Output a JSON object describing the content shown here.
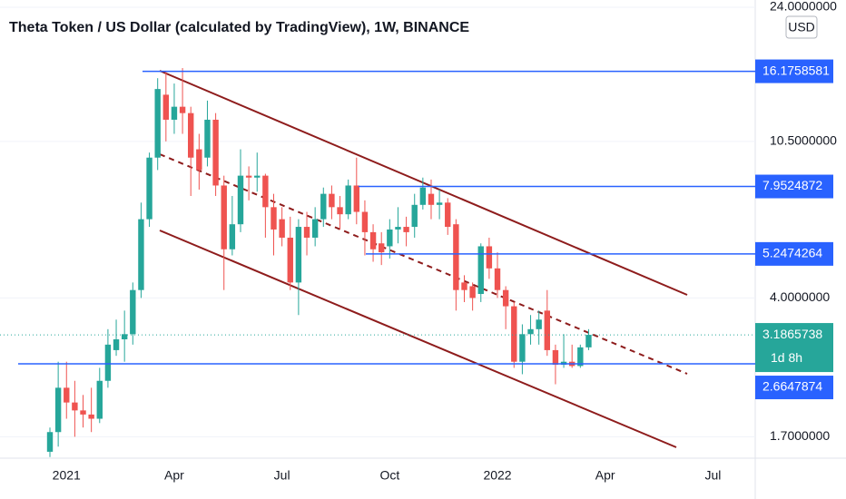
{
  "chart_data": {
    "type": "candlestick",
    "title": "Theta Token / US Dollar (calculated by TradingView), 1W, BINANCE",
    "currency": "USD",
    "categories": [
      null,
      null,
      "2021",
      null,
      null,
      null,
      null,
      null,
      null,
      null,
      null,
      null,
      null,
      null,
      null,
      "Apr",
      null,
      null,
      null,
      null,
      null,
      null,
      null,
      null,
      null,
      null,
      null,
      null,
      "Jul",
      null,
      null,
      null,
      null,
      null,
      null,
      null,
      null,
      null,
      null,
      null,
      null,
      "Oct",
      null,
      null,
      null,
      null,
      null,
      null,
      null,
      null,
      null,
      null,
      null,
      null,
      "2022",
      null,
      null,
      null,
      null,
      null,
      null,
      null,
      null,
      null,
      null,
      null,
      null,
      "Apr",
      null,
      null,
      null,
      null,
      null,
      null,
      null,
      null,
      null,
      null,
      null,
      null,
      "Jul",
      null
    ],
    "open": [
      1.55,
      1.75,
      2.3,
      2.1,
      2.0,
      1.95,
      1.9,
      2.4,
      2.9,
      3.1,
      3.2,
      4.2,
      6.5,
      9.5,
      14,
      12,
      13,
      12.5,
      10,
      9.5,
      12,
      8,
      5.4,
      6.3,
      8.5,
      8.4,
      8.5,
      7,
      6.5,
      5.8,
      4.4,
      6.2,
      5.8,
      6.5,
      7.6,
      7.0,
      6.7,
      8,
      6.8,
      6,
      5.6,
      5.5,
      6.1,
      6.2,
      6.2,
      7.1,
      7.6,
      7.1,
      7.2,
      6.3,
      4.4,
      4.3,
      4.1,
      5.5,
      4.8,
      4.2,
      3.8,
      2.7,
      3.2,
      3.3,
      3.7,
      2.9,
      2.65,
      2.7,
      2.63,
      2.95,
      null,
      null,
      null,
      null,
      null,
      null,
      null,
      null,
      null,
      null,
      null,
      null,
      null,
      null,
      null,
      null
    ],
    "high": [
      1.8,
      2.7,
      2.7,
      2.4,
      2.2,
      2.3,
      2.6,
      3.3,
      3.5,
      3.7,
      4.4,
      7.2,
      9.8,
      15.5,
      16.2,
      15,
      16.5,
      13,
      11,
      13.5,
      12.5,
      8.5,
      7.5,
      10,
      9,
      9.8,
      8.6,
      7.6,
      7,
      6.6,
      6.5,
      6.8,
      7,
      7.9,
      8,
      7.5,
      8.3,
      9.5,
      7.3,
      6.3,
      6,
      6.5,
      7,
      6.6,
      7.6,
      8.4,
      8.3,
      7.8,
      7.4,
      6.5,
      4.6,
      4.4,
      5.6,
      5.8,
      5.3,
      4.3,
      3.9,
      3.4,
      3.6,
      3.7,
      4.2,
      3.0,
      3.2,
      3.0,
      3.0,
      3.3,
      null,
      null,
      null,
      null,
      null,
      null,
      null,
      null,
      null,
      null,
      null,
      null,
      null,
      null,
      null,
      null
    ],
    "low": [
      1.5,
      1.6,
      1.9,
      1.7,
      1.8,
      1.75,
      1.85,
      2.3,
      2.8,
      2.7,
      3.0,
      4.0,
      6.2,
      8.8,
      10.5,
      11,
      11,
      7.5,
      7.8,
      9,
      7.5,
      4.2,
      5.2,
      6,
      7.3,
      7.7,
      5.8,
      5.2,
      5.5,
      4.2,
      3.6,
      5.2,
      5.5,
      6.2,
      6.5,
      6.1,
      6.5,
      6.3,
      5.2,
      5,
      4.9,
      5.1,
      5.6,
      5.5,
      5.8,
      6.9,
      6.5,
      6.5,
      5.9,
      3.7,
      3.9,
      3.7,
      3.9,
      4.5,
      4.0,
      3.3,
      2.6,
      2.5,
      3.0,
      3.0,
      2.8,
      2.35,
      2.6,
      2.6,
      2.6,
      2.9,
      null,
      null,
      null,
      null,
      null,
      null,
      null,
      null,
      null,
      null,
      null,
      null,
      null,
      null,
      null,
      null
    ],
    "close": [
      1.75,
      2.3,
      2.1,
      2.0,
      1.95,
      1.9,
      2.4,
      3.0,
      3.1,
      3.2,
      4.2,
      6.5,
      9.5,
      14.5,
      12,
      13,
      12.5,
      9.5,
      8.8,
      12,
      8,
      5.4,
      6.3,
      8.5,
      8.4,
      8.5,
      7,
      6.1,
      5.8,
      4.4,
      6.2,
      5.8,
      6.5,
      7.6,
      7.0,
      6.7,
      8,
      6.8,
      6,
      5.4,
      5.3,
      6.1,
      6.2,
      6.0,
      7.1,
      7.9,
      7.1,
      7.2,
      6.2,
      4.2,
      4.2,
      4.0,
      5.5,
      4.8,
      4.2,
      3.8,
      2.7,
      3.2,
      3.3,
      3.5,
      2.9,
      2.65,
      2.7,
      2.63,
      2.95,
      3.1865738,
      null,
      null,
      null,
      null,
      null,
      null,
      null,
      null,
      null,
      null,
      null,
      null,
      null,
      null,
      null,
      null
    ],
    "up_color": "#26a69a",
    "down_color": "#ef5350",
    "log_scale": true,
    "grid": true,
    "ylim": [
      1.49,
      25.1
    ],
    "yticks": [
      {
        "value": 24,
        "label": "24.0000000"
      },
      {
        "value": 10.5,
        "label": "10.5000000"
      },
      {
        "value": 4,
        "label": "4.0000000"
      },
      {
        "value": 1.7,
        "label": "1.7000000"
      }
    ],
    "levels": [
      16.1758581,
      7.9524872,
      5.2474264,
      2.6647874
    ],
    "level_color": "#2962ff",
    "last_price": 3.1865738,
    "countdown": "1d 8h"
  }
}
